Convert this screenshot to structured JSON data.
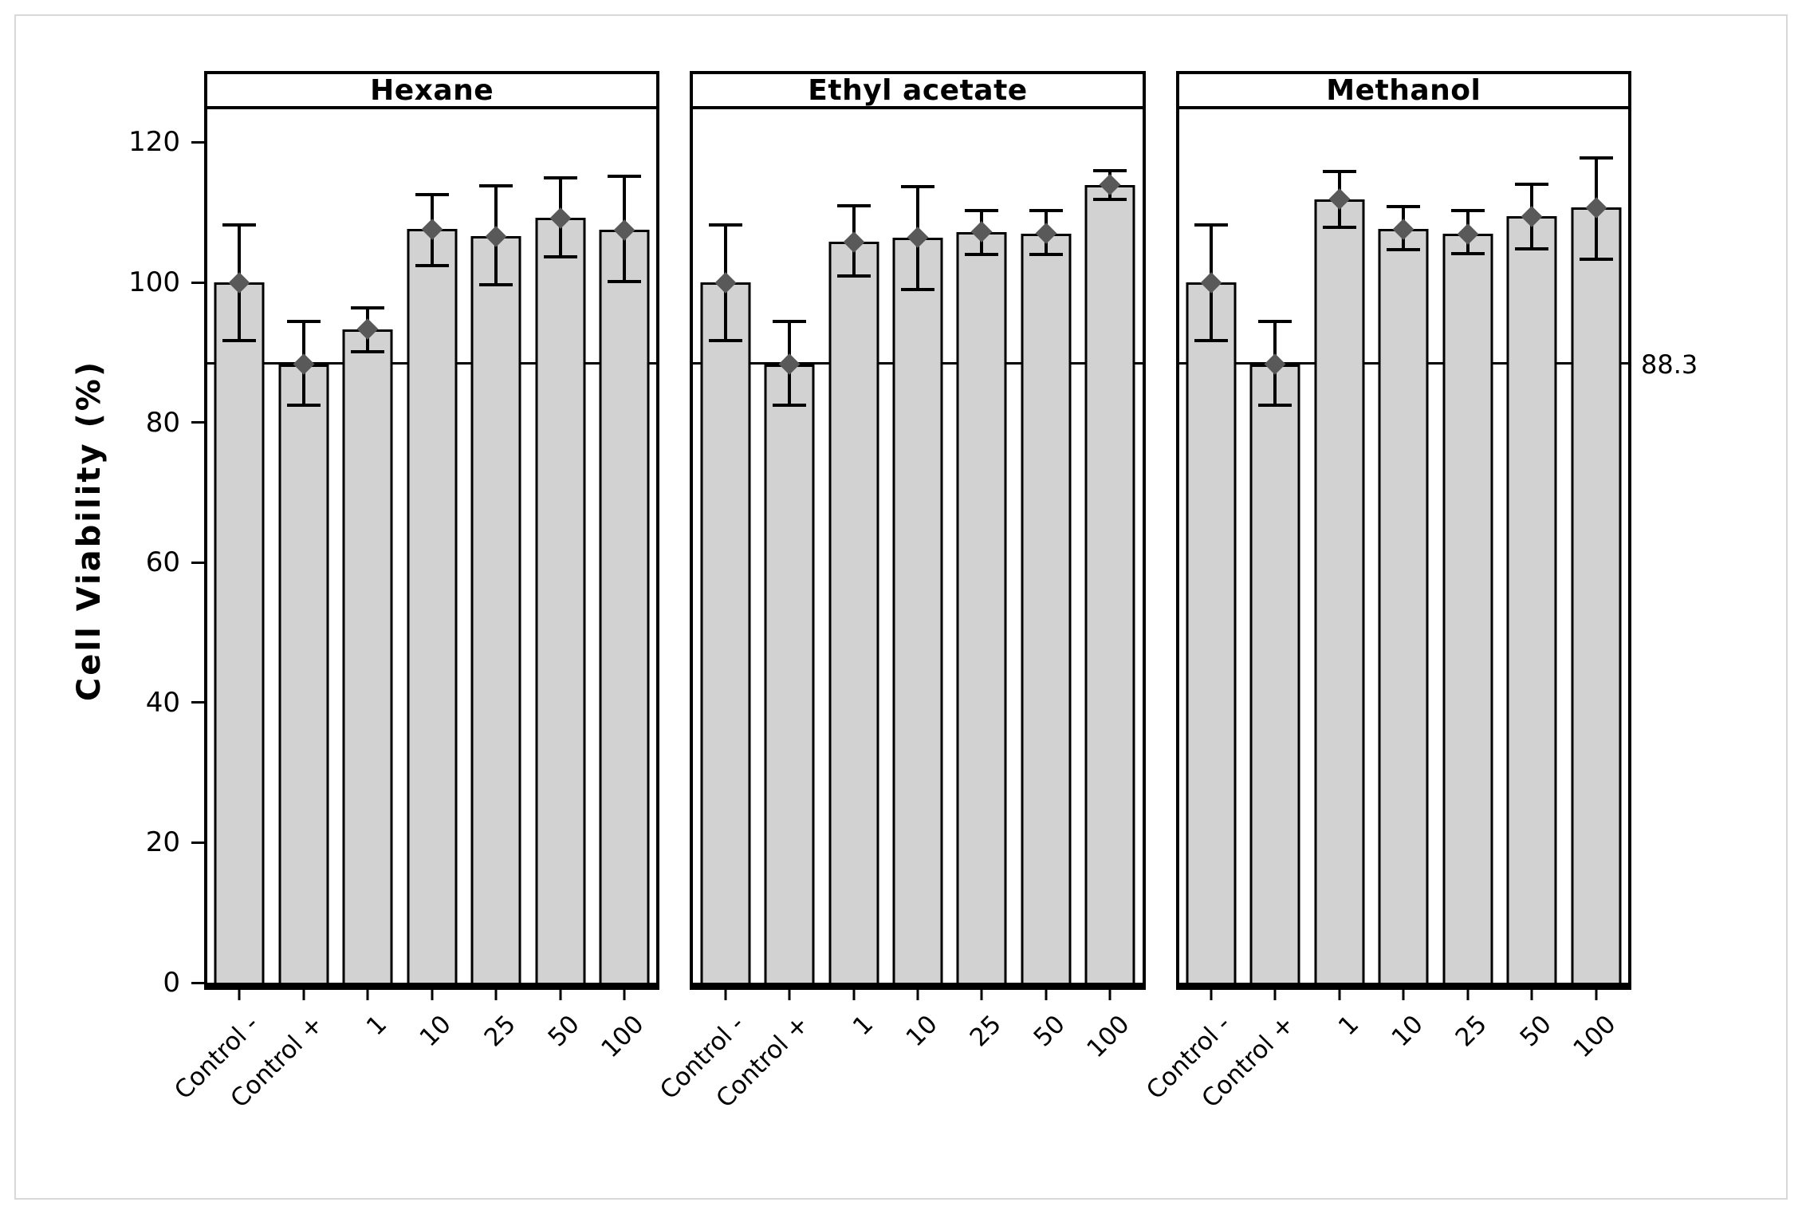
{
  "page": {
    "background": "#ffffff",
    "border_color": "#d8d8d8"
  },
  "chart_data": {
    "type": "bar",
    "title": "",
    "xlabel": "",
    "ylabel": "Cell Viability (%)",
    "ylim": [
      0,
      124.7
    ],
    "yticks": [
      0,
      20,
      40,
      60,
      80,
      100,
      120
    ],
    "grid": false,
    "legend": "none",
    "categories": [
      "Control -",
      "Control +",
      "1",
      "10",
      "25",
      "50",
      "100"
    ],
    "reference_line": {
      "value": 88.3,
      "label": "88.3"
    },
    "error_bars": true,
    "marker": "diamond",
    "panels": [
      {
        "title": "Hexane",
        "values": [
          100.0,
          88.3,
          93.3,
          107.6,
          106.6,
          109.2,
          107.5
        ],
        "err_hi": [
          108.2,
          94.4,
          96.4,
          112.5,
          113.8,
          114.9,
          115.2
        ],
        "err_lo": [
          91.7,
          82.5,
          90.1,
          102.4,
          99.7,
          103.6,
          100.1
        ]
      },
      {
        "title": "Ethyl acetate",
        "values": [
          100.0,
          88.3,
          105.8,
          106.4,
          107.2,
          107.0,
          113.9
        ],
        "err_hi": [
          108.2,
          94.4,
          110.9,
          113.7,
          110.3,
          110.3,
          116.0
        ],
        "err_lo": [
          91.7,
          82.5,
          100.9,
          99.0,
          104.0,
          104.0,
          111.8
        ]
      },
      {
        "title": "Methanol",
        "values": [
          100.0,
          88.3,
          111.9,
          107.6,
          106.9,
          109.4,
          110.7
        ],
        "err_hi": [
          108.2,
          94.4,
          115.8,
          110.8,
          110.2,
          114.0,
          117.8
        ],
        "err_lo": [
          91.7,
          82.5,
          107.9,
          104.7,
          104.1,
          104.8,
          103.3
        ]
      }
    ],
    "colors": {
      "bar_fill": "#d2d2d2",
      "bar_border": "#000000",
      "error_bar": "#000000",
      "marker": "#595959",
      "reference_line": "#000000",
      "text": "#000000"
    }
  }
}
